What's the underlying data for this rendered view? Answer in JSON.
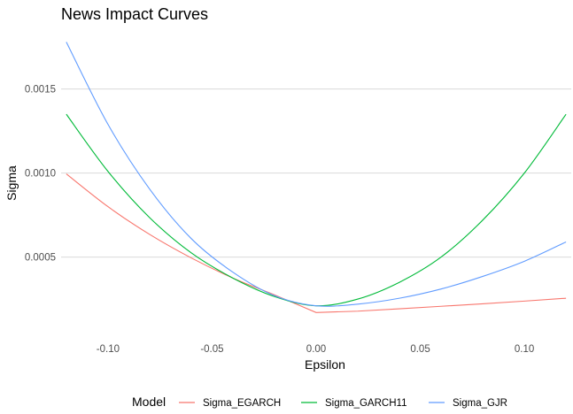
{
  "chart_data": {
    "type": "line",
    "title": "News Impact Curves",
    "xlabel": "Epsilon",
    "ylabel": "Sigma",
    "xlim": [
      -0.1225,
      0.1225
    ],
    "ylim": [
      8.2e-05,
      0.001835
    ],
    "xticks": [
      -0.1,
      -0.05,
      0.0,
      0.05,
      0.1
    ],
    "xtick_labels": [
      "-0.10",
      "-0.05",
      "0.00",
      "0.05",
      "0.10"
    ],
    "yticks": [
      0.0005,
      0.001,
      0.0015
    ],
    "ytick_labels": [
      "0.0005",
      "0.0010",
      "0.0015"
    ],
    "grid": true,
    "legend": {
      "title": "Model",
      "position": "bottom"
    },
    "series": [
      {
        "name": "Sigma_EGARCH",
        "color": "#F8766D",
        "x": [
          -0.12,
          -0.1,
          -0.08,
          -0.06,
          -0.04,
          -0.02,
          0.0,
          0.02,
          0.04,
          0.06,
          0.08,
          0.1,
          0.12
        ],
        "y": [
          0.000995,
          0.0008,
          0.000635,
          0.000495,
          0.000375,
          0.000275,
          0.00017,
          0.000178,
          0.000192,
          0.000207,
          0.000222,
          0.000238,
          0.000255
        ]
      },
      {
        "name": "Sigma_GARCH11",
        "color": "#00BA38",
        "x": [
          -0.12,
          -0.1,
          -0.08,
          -0.06,
          -0.04,
          -0.02,
          0.0,
          0.02,
          0.04,
          0.06,
          0.08,
          0.1,
          0.12
        ],
        "y": [
          0.00135,
          0.00101,
          0.000735,
          0.000525,
          0.000375,
          0.000265,
          0.00021,
          0.00025,
          0.00035,
          0.0005,
          0.00072,
          0.001,
          0.00135
        ]
      },
      {
        "name": "Sigma_GJR",
        "color": "#619CFF",
        "x": [
          -0.12,
          -0.1,
          -0.08,
          -0.06,
          -0.04,
          -0.02,
          0.0,
          0.02,
          0.04,
          0.06,
          0.08,
          0.1,
          0.12
        ],
        "y": [
          0.00178,
          0.00129,
          0.000905,
          0.00061,
          0.00041,
          0.00027,
          0.00021,
          0.00022,
          0.000255,
          0.00031,
          0.000385,
          0.000475,
          0.00059
        ]
      }
    ]
  }
}
